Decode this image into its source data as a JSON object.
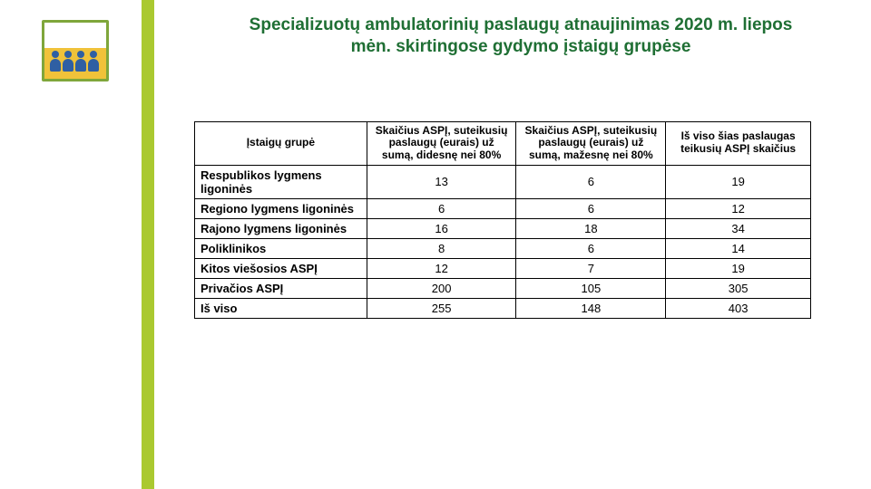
{
  "colors": {
    "accent_green": "#258b41",
    "bar_green": "#aac930",
    "logo_border": "#7fa63b",
    "logo_sky": "#ffffff",
    "logo_ground": "#f0c23a",
    "person_blue": "#2f5fa3",
    "title_color": "#1f6f34",
    "table_border": "#000000",
    "text": "#000000"
  },
  "title": {
    "line1": "Specializuotų ambulatorinių paslaugų atnaujinimas 2020 m. liepos",
    "line2": "mėn. skirtingose gydymo įstaigų grupėse",
    "fontsize": 19
  },
  "table": {
    "header_fontsize": 12,
    "body_fontsize": 13,
    "columns": [
      "Įstaigų grupė",
      "Skaičius ASPĮ, suteikusių paslaugų (eurais) už sumą, didesnę nei 80%",
      "Skaičius ASPĮ, suteikusių paslaugų (eurais) už sumą, mažesnę nei 80%",
      "Iš viso šias paslaugas teikusių ASPĮ skaičius"
    ],
    "rows": [
      {
        "label": "Respublikos lygmens ligoninės",
        "v1": "13",
        "v2": "6",
        "v3": "19"
      },
      {
        "label": "Regiono lygmens ligoninės",
        "v1": "6",
        "v2": "6",
        "v3": "12"
      },
      {
        "label": "Rajono lygmens ligoninės",
        "v1": "16",
        "v2": "18",
        "v3": "34"
      },
      {
        "label": "Poliklinikos",
        "v1": "8",
        "v2": "6",
        "v3": "14"
      },
      {
        "label": "Kitos viešosios ASPĮ",
        "v1": "12",
        "v2": "7",
        "v3": "19"
      },
      {
        "label": "Privačios ASPĮ",
        "v1": "200",
        "v2": "105",
        "v3": "305"
      },
      {
        "label": "Iš viso",
        "v1": "255",
        "v2": "148",
        "v3": "403"
      }
    ]
  }
}
